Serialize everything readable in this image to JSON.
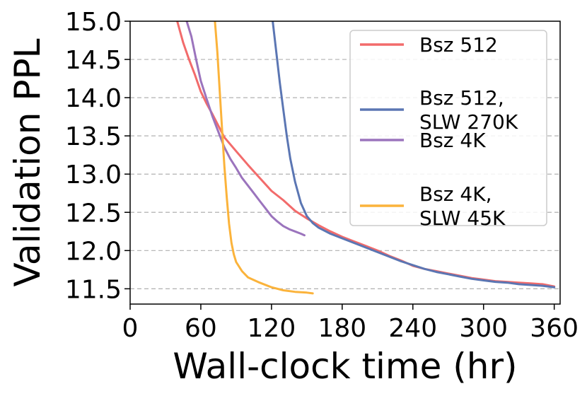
{
  "chart_data": {
    "type": "line",
    "title": "",
    "xlabel": "Wall-clock time (hr)",
    "ylabel": "Validation PPL",
    "xlim": [
      0,
      365
    ],
    "ylim": [
      11.3,
      15.0
    ],
    "xticks": [
      0,
      60,
      120,
      180,
      240,
      300,
      360
    ],
    "yticks": [
      11.5,
      12.0,
      12.5,
      13.0,
      13.5,
      14.0,
      14.5,
      15.0
    ],
    "xtick_labels": [
      "0",
      "60",
      "120",
      "180",
      "240",
      "300",
      "360"
    ],
    "ytick_labels": [
      "11.5",
      "12.0",
      "12.5",
      "13.0",
      "13.5",
      "14.0",
      "14.5",
      "15.0"
    ],
    "grid": "horizontal-dashed",
    "legend_position": "top-right",
    "series": [
      {
        "name": "Bsz 512",
        "color": "#f26b6b",
        "x": [
          40,
          45,
          50,
          55,
          60,
          65,
          70,
          75,
          80,
          90,
          100,
          110,
          120,
          130,
          140,
          150,
          160,
          170,
          180,
          190,
          200,
          210,
          220,
          230,
          240,
          250,
          260,
          270,
          280,
          290,
          300,
          310,
          320,
          330,
          340,
          350,
          360
        ],
        "y": [
          15.0,
          14.72,
          14.5,
          14.3,
          14.08,
          13.92,
          13.78,
          13.63,
          13.48,
          13.3,
          13.12,
          12.95,
          12.78,
          12.66,
          12.52,
          12.42,
          12.33,
          12.25,
          12.18,
          12.12,
          12.06,
          12.0,
          11.93,
          11.87,
          11.8,
          11.76,
          11.73,
          11.7,
          11.67,
          11.64,
          11.62,
          11.6,
          11.59,
          11.58,
          11.57,
          11.56,
          11.53
        ]
      },
      {
        "name": "Bsz 512,\nSLW 270K",
        "color": "#5b76b3",
        "x": [
          121,
          124,
          127,
          130,
          133,
          136,
          140,
          145,
          150,
          155,
          160,
          170,
          180,
          190,
          200,
          210,
          220,
          230,
          240,
          250,
          260,
          270,
          280,
          290,
          300,
          310,
          320,
          330,
          340,
          350,
          360
        ],
        "y": [
          15.0,
          14.6,
          14.2,
          13.85,
          13.5,
          13.2,
          12.9,
          12.62,
          12.45,
          12.36,
          12.3,
          12.22,
          12.16,
          12.1,
          12.04,
          11.98,
          11.92,
          11.86,
          11.81,
          11.76,
          11.72,
          11.69,
          11.66,
          11.63,
          11.61,
          11.59,
          11.58,
          11.56,
          11.55,
          11.54,
          11.52
        ]
      },
      {
        "name": "Bsz 4K",
        "color": "#9b74bd",
        "x": [
          48,
          52,
          56,
          60,
          65,
          70,
          75,
          80,
          85,
          90,
          95,
          100,
          105,
          110,
          115,
          120,
          125,
          130,
          135,
          140,
          145,
          148
        ],
        "y": [
          15.0,
          14.8,
          14.5,
          14.22,
          13.98,
          13.75,
          13.55,
          13.35,
          13.2,
          13.08,
          12.95,
          12.85,
          12.75,
          12.65,
          12.55,
          12.45,
          12.38,
          12.32,
          12.28,
          12.25,
          12.22,
          12.2
        ]
      },
      {
        "name": "Bsz 4K,\nSLW 45K",
        "color": "#fbb33b",
        "x": [
          72,
          74,
          76,
          78,
          80,
          82,
          84,
          86,
          88,
          90,
          95,
          100,
          110,
          120,
          130,
          140,
          150,
          155
        ],
        "y": [
          15.0,
          14.6,
          14.1,
          13.6,
          13.1,
          12.7,
          12.35,
          12.1,
          11.95,
          11.85,
          11.73,
          11.65,
          11.58,
          11.52,
          11.48,
          11.46,
          11.45,
          11.44
        ]
      }
    ]
  }
}
